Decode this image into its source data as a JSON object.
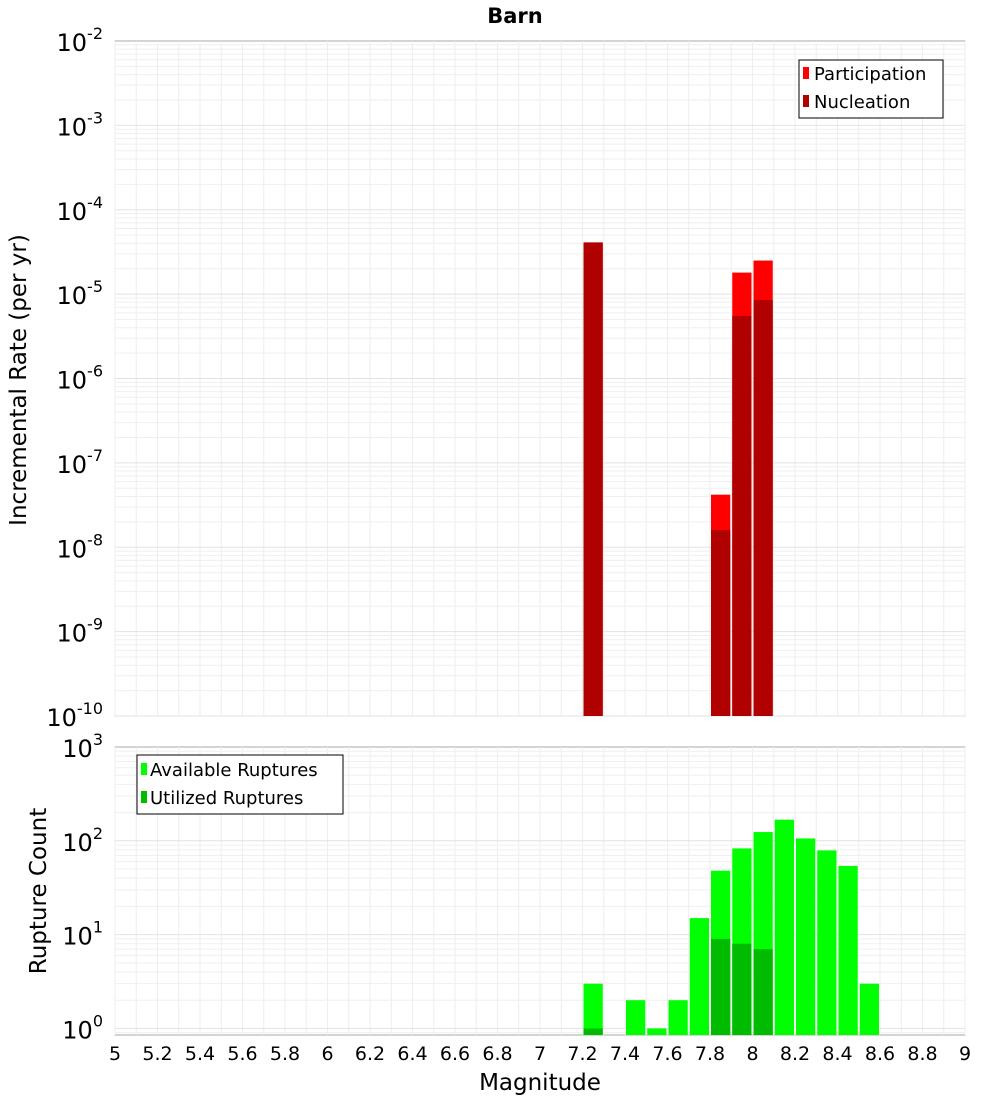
{
  "chart_data": [
    {
      "type": "bar",
      "title": "Barn",
      "xlabel": "Magnitude",
      "ylabel": "Incremental Rate (per yr)",
      "yscale": "log",
      "ylim_exp": [
        -10,
        -2
      ],
      "xlim": [
        5,
        9
      ],
      "grid": true,
      "legend_position": "top-right",
      "bin_width": 0.1,
      "series": [
        {
          "name": "Participation",
          "color": "#ff0000",
          "x": [
            7.25,
            7.85,
            7.95,
            8.05
          ],
          "values": [
            4.1e-05,
            4.2e-08,
            1.8e-05,
            2.5e-05
          ]
        },
        {
          "name": "Nucleation",
          "color": "#b00000",
          "x": [
            7.25,
            7.85,
            7.95,
            8.05
          ],
          "values": [
            4.1e-05,
            1.6e-08,
            5.5e-06,
            8.5e-06
          ]
        }
      ]
    },
    {
      "type": "bar",
      "title": "",
      "xlabel": "Magnitude",
      "ylabel": "Rupture Count",
      "yscale": "log",
      "ylim_exp": [
        -0.07,
        3
      ],
      "xlim": [
        5,
        9
      ],
      "grid": true,
      "legend_position": "top-left",
      "bin_width": 0.1,
      "series": [
        {
          "name": "Available Ruptures",
          "color": "#00ff00",
          "x": [
            7.25,
            7.45,
            7.55,
            7.65,
            7.75,
            7.85,
            7.95,
            8.05,
            8.15,
            8.25,
            8.35,
            8.45,
            8.55
          ],
          "values": [
            3,
            2,
            1,
            2,
            15,
            48,
            83,
            124,
            168,
            106,
            79,
            54,
            3
          ]
        },
        {
          "name": "Utilized Ruptures",
          "color": "#00bb00",
          "x": [
            7.25,
            7.85,
            7.95,
            8.05
          ],
          "values": [
            1,
            9,
            8,
            7
          ]
        }
      ]
    }
  ],
  "x_ticks": [
    "5",
    "5.2",
    "5.4",
    "5.6",
    "5.8",
    "6",
    "6.2",
    "6.4",
    "6.6",
    "6.8",
    "7",
    "7.2",
    "7.4",
    "7.6",
    "7.8",
    "8",
    "8.2",
    "8.4",
    "8.6",
    "8.8",
    "9"
  ],
  "top_y_ticks": [
    {
      "base": "10",
      "exp": "-2"
    },
    {
      "base": "10",
      "exp": "-3"
    },
    {
      "base": "10",
      "exp": "-4"
    },
    {
      "base": "10",
      "exp": "-5"
    },
    {
      "base": "10",
      "exp": "-6"
    },
    {
      "base": "10",
      "exp": "-7"
    },
    {
      "base": "10",
      "exp": "-8"
    },
    {
      "base": "10",
      "exp": "-9"
    },
    {
      "base": "10",
      "exp": "-10"
    }
  ],
  "bottom_y_ticks": [
    {
      "base": "10",
      "exp": "3"
    },
    {
      "base": "10",
      "exp": "2"
    },
    {
      "base": "10",
      "exp": "1"
    },
    {
      "base": "10",
      "exp": "0"
    }
  ]
}
